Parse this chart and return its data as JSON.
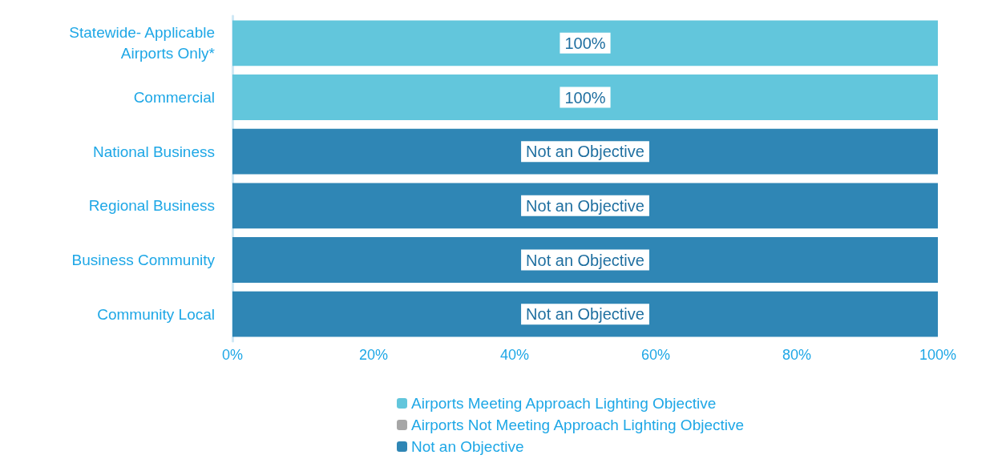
{
  "chart_data": {
    "type": "bar",
    "orientation": "horizontal",
    "stacked": true,
    "categories": [
      "Statewide- Applicable\nAirports Only*",
      "Commercial",
      "National Business",
      "Regional Business",
      "Business Community",
      "Community Local"
    ],
    "series": [
      {
        "name": "Airports Meeting Approach Lighting Objective",
        "color": "#62c6dc",
        "values": [
          100,
          100,
          0,
          0,
          0,
          0
        ],
        "value_labels": [
          "100%",
          "100%",
          null,
          null,
          null,
          null
        ]
      },
      {
        "name": "Airports Not Meeting Approach Lighting Objective",
        "color": "#a6a6a6",
        "values": [
          0,
          0,
          0,
          0,
          0,
          0
        ]
      },
      {
        "name": "Not an Objective",
        "color": "#2f86b5",
        "values": [
          0,
          0,
          100,
          100,
          100,
          100
        ],
        "value_labels": [
          null,
          null,
          "Not an Objective",
          "Not an Objective",
          "Not an Objective",
          "Not an Objective"
        ]
      }
    ],
    "xlim": [
      0,
      100
    ],
    "xticks": [
      {
        "value": 0,
        "label": "0%"
      },
      {
        "value": 20,
        "label": "20%"
      },
      {
        "value": 40,
        "label": "40%"
      },
      {
        "value": 60,
        "label": "60%"
      },
      {
        "value": 80,
        "label": "80%"
      },
      {
        "value": 100,
        "label": "100%"
      }
    ],
    "grid": false,
    "legend": "bottom"
  }
}
